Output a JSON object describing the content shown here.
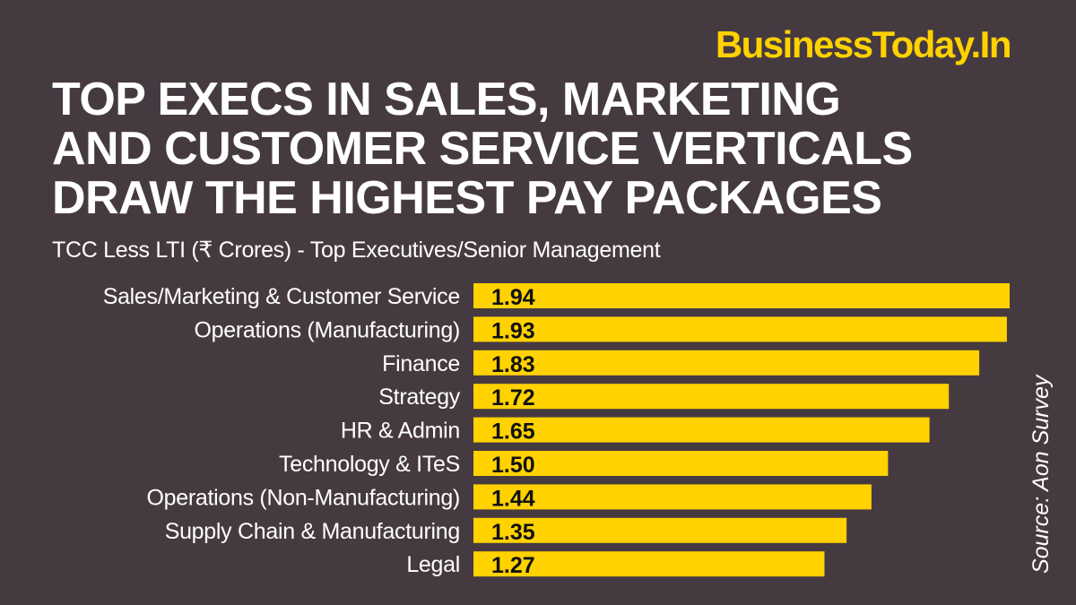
{
  "logo": "BusinessToday.In",
  "chart_data": {
    "type": "bar",
    "orientation": "horizontal",
    "title_lines": [
      "TOP EXECS IN SALES, MARKETING",
      "AND CUSTOMER SERVICE VERTICALS",
      "DRAW THE HIGHEST PAY PACKAGES"
    ],
    "subtitle": "TCC Less LTI (₹ Crores) - Top Executives/Senior Management",
    "categories": [
      "Sales/Marketing & Customer Service",
      "Operations (Manufacturing)",
      "Finance",
      "Strategy",
      "HR & Admin",
      "Technology & ITeS",
      "Operations (Non-Manufacturing)",
      "Supply Chain & Manufacturing",
      "Legal"
    ],
    "values": [
      1.94,
      1.93,
      1.83,
      1.72,
      1.65,
      1.5,
      1.44,
      1.35,
      1.27
    ],
    "data_labels": [
      "1.94",
      "1.93",
      "1.83",
      "1.72",
      "1.65",
      "1.50",
      "1.44",
      "1.35",
      "1.27"
    ],
    "xlim": [
      0,
      1.94
    ],
    "grid": false,
    "bar_color": "#ffd200",
    "source": "Source: Aon Survey"
  }
}
